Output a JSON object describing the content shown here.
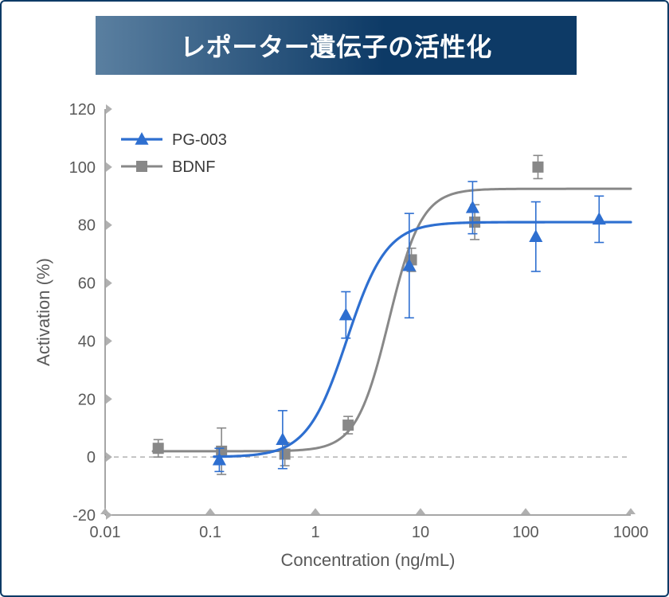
{
  "title": "レポーター遺伝子の活性化",
  "title_fontsize": 32,
  "title_colors": {
    "text": "#ffffff",
    "grad_start": "#5a7fa0",
    "grad_end": "#0d3a66"
  },
  "card_border_color": "#0d3a66",
  "chart": {
    "type": "scatter+line",
    "xlabel": "Concentration (ng/mL)",
    "ylabel": "Activation (%)",
    "label_fontsize": 22,
    "tick_fontsize": 20,
    "xscale": "log10",
    "xlim": [
      0.01,
      1000
    ],
    "xticks": [
      0.01,
      0.1,
      1,
      10,
      100,
      1000
    ],
    "xtick_labels": [
      "0.01",
      "0.1",
      "1",
      "10",
      "100",
      "1000"
    ],
    "ylim": [
      -20,
      120
    ],
    "yticks": [
      -20,
      0,
      20,
      40,
      60,
      80,
      100,
      120
    ],
    "ytick_labels": [
      "-20",
      "0",
      "20",
      "40",
      "60",
      "80",
      "100",
      "120"
    ],
    "background_color": "#ffffff",
    "axis_color": "#888888",
    "tick_marker_color": "#b0b0b0",
    "zero_line_color": "#b0b0b0",
    "zero_line_dash": "6,5",
    "legend": {
      "position": "upper-left-inside",
      "border_width": 0
    },
    "series": [
      {
        "name": "PG-003",
        "marker": "triangle",
        "marker_size": 9,
        "color": "#2e6fd0",
        "line_width": 3.2,
        "curve": {
          "bottom": 0,
          "top": 81,
          "logEC50": 0.3,
          "hill": 2.3
        },
        "points": [
          {
            "x": 0.122,
            "y": -1,
            "err": 4
          },
          {
            "x": 0.488,
            "y": 6,
            "err": 10
          },
          {
            "x": 1.95,
            "y": 49,
            "err": 8
          },
          {
            "x": 7.81,
            "y": 66,
            "err": 18
          },
          {
            "x": 31.3,
            "y": 86,
            "err": 9
          },
          {
            "x": 125,
            "y": 76,
            "err": 12
          },
          {
            "x": 500,
            "y": 82,
            "err": 8
          }
        ]
      },
      {
        "name": "BDNF",
        "marker": "square",
        "marker_size": 7,
        "color": "#888888",
        "line_width": 3.0,
        "curve": {
          "bottom": 2,
          "top": 92.5,
          "logEC50": 0.7,
          "hill": 2.8
        },
        "points": [
          {
            "x": 0.032,
            "y": 3,
            "err": 3
          },
          {
            "x": 0.128,
            "y": 2,
            "err": 8
          },
          {
            "x": 0.512,
            "y": 1,
            "err": 4
          },
          {
            "x": 2.05,
            "y": 11,
            "err": 3
          },
          {
            "x": 8.19,
            "y": 68,
            "err": 4
          },
          {
            "x": 32.8,
            "y": 81,
            "err": 6
          },
          {
            "x": 131,
            "y": 100,
            "err": 4
          }
        ]
      }
    ]
  }
}
